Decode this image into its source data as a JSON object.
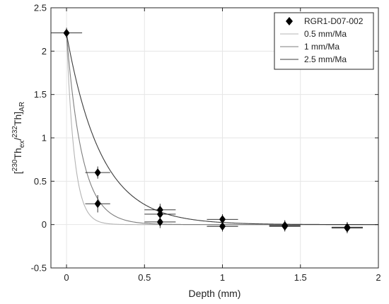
{
  "chart_data": {
    "type": "scatter",
    "xlabel": "Depth (mm)",
    "ylabel": {
      "open": "[",
      "sup1": "230",
      "base1": "Th",
      "sub1": "ex",
      "slash": "/",
      "sup2": "232",
      "base2": "Th]",
      "sub2": "AR"
    },
    "xlim": [
      -0.1,
      2.0
    ],
    "ylim": [
      -0.5,
      2.5
    ],
    "xticks": [
      0,
      0.5,
      1,
      1.5,
      2
    ],
    "xtick_labels": [
      "0",
      "0.5",
      "1",
      "1.5",
      "2"
    ],
    "yticks": [
      -0.5,
      0,
      0.5,
      1,
      1.5,
      2,
      2.5
    ],
    "ytick_labels": [
      "-0.5",
      "0",
      "0.5",
      "1",
      "1.5",
      "2",
      "2.5"
    ],
    "grid": true,
    "legend_position": "top-right",
    "points": {
      "name": "RGR1-D07-002",
      "color": "#000000",
      "marker": "diamond",
      "data": [
        {
          "x": 0.0,
          "y": 2.21,
          "xerr": 0.1,
          "yerr": 0.06
        },
        {
          "x": 0.2,
          "y": 0.6,
          "xerr": 0.08,
          "yerr": 0.07
        },
        {
          "x": 0.2,
          "y": 0.24,
          "xerr": 0.08,
          "yerr": 0.1
        },
        {
          "x": 0.6,
          "y": 0.17,
          "xerr": 0.1,
          "yerr": 0.07
        },
        {
          "x": 0.6,
          "y": 0.12,
          "xerr": 0.1,
          "yerr": 0.07
        },
        {
          "x": 0.6,
          "y": 0.03,
          "xerr": 0.1,
          "yerr": 0.07
        },
        {
          "x": 1.0,
          "y": 0.06,
          "xerr": 0.1,
          "yerr": 0.06
        },
        {
          "x": 1.0,
          "y": -0.02,
          "xerr": 0.1,
          "yerr": 0.06
        },
        {
          "x": 1.4,
          "y": -0.01,
          "xerr": 0.1,
          "yerr": 0.06
        },
        {
          "x": 1.4,
          "y": -0.02,
          "xerr": 0.1,
          "yerr": 0.06
        },
        {
          "x": 1.8,
          "y": -0.03,
          "xerr": 0.1,
          "yerr": 0.06
        },
        {
          "x": 1.8,
          "y": -0.04,
          "xerr": 0.1,
          "yerr": 0.06
        }
      ]
    },
    "curves": [
      {
        "name": "0.5 mm/Ma",
        "color": "#b4b4b4",
        "y0": 2.2,
        "k": 20
      },
      {
        "name": "1 mm/Ma",
        "color": "#7d7d7d",
        "y0": 2.2,
        "k": 10
      },
      {
        "name": "2.5 mm/Ma",
        "color": "#3c3c3c",
        "y0": 2.2,
        "k": 4.5
      }
    ]
  }
}
